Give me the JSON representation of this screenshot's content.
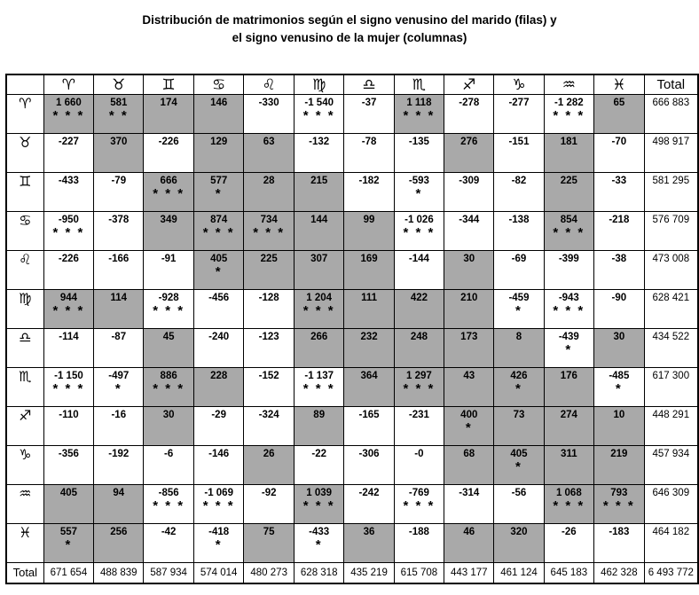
{
  "title": {
    "line1": "Distribución de matrimonios según el signo venusino del marido (filas) y",
    "line2": "el signo venusino de la mujer (columnas)"
  },
  "colors": {
    "shaded_cell": "#a9a9a9",
    "border": "#000000",
    "background": "#ffffff",
    "text": "#000000"
  },
  "chart_data": {
    "type": "table",
    "title": "Distribución de matrimonios según el signo venusino del marido (filas) y el signo venusino de la mujer (columnas)",
    "total_label": "Total",
    "column_headers": [
      "♈",
      "♉",
      "♊",
      "♋",
      "♌",
      "♍",
      "♎",
      "♏",
      "♐",
      "♑",
      "♒",
      "♓"
    ],
    "sign_names": [
      "aries",
      "taurus",
      "gemini",
      "cancer",
      "leo",
      "virgo",
      "libra",
      "scorpio",
      "sagittarius",
      "capricorn",
      "aquarius",
      "pisces"
    ],
    "rows": [
      {
        "sign": "♈",
        "name": "aries",
        "total": "666 883",
        "cells": [
          {
            "v": "1 660",
            "stars": "* * *",
            "shaded": true
          },
          {
            "v": "581",
            "stars": "* *",
            "shaded": true
          },
          {
            "v": "174",
            "stars": "",
            "shaded": true
          },
          {
            "v": "146",
            "stars": "",
            "shaded": true
          },
          {
            "v": "-330",
            "stars": "",
            "shaded": false
          },
          {
            "v": "-1 540",
            "stars": "* * *",
            "shaded": false
          },
          {
            "v": "-37",
            "stars": "",
            "shaded": false
          },
          {
            "v": "1 118",
            "stars": "* * *",
            "shaded": true
          },
          {
            "v": "-278",
            "stars": "",
            "shaded": false
          },
          {
            "v": "-277",
            "stars": "",
            "shaded": false
          },
          {
            "v": "-1 282",
            "stars": "* * *",
            "shaded": false
          },
          {
            "v": "65",
            "stars": "",
            "shaded": true
          }
        ]
      },
      {
        "sign": "♉",
        "name": "taurus",
        "total": "498 917",
        "cells": [
          {
            "v": "-227",
            "stars": "",
            "shaded": false
          },
          {
            "v": "370",
            "stars": "",
            "shaded": true
          },
          {
            "v": "-226",
            "stars": "",
            "shaded": false
          },
          {
            "v": "129",
            "stars": "",
            "shaded": true
          },
          {
            "v": "63",
            "stars": "",
            "shaded": true
          },
          {
            "v": "-132",
            "stars": "",
            "shaded": false
          },
          {
            "v": "-78",
            "stars": "",
            "shaded": false
          },
          {
            "v": "-135",
            "stars": "",
            "shaded": false
          },
          {
            "v": "276",
            "stars": "",
            "shaded": true
          },
          {
            "v": "-151",
            "stars": "",
            "shaded": false
          },
          {
            "v": "181",
            "stars": "",
            "shaded": true
          },
          {
            "v": "-70",
            "stars": "",
            "shaded": false
          }
        ]
      },
      {
        "sign": "♊",
        "name": "gemini",
        "total": "581 295",
        "cells": [
          {
            "v": "-433",
            "stars": "",
            "shaded": false
          },
          {
            "v": "-79",
            "stars": "",
            "shaded": false
          },
          {
            "v": "666",
            "stars": "* * *",
            "shaded": true
          },
          {
            "v": "577",
            "stars": "*",
            "shaded": true
          },
          {
            "v": "28",
            "stars": "",
            "shaded": true
          },
          {
            "v": "215",
            "stars": "",
            "shaded": true
          },
          {
            "v": "-182",
            "stars": "",
            "shaded": false
          },
          {
            "v": "-593",
            "stars": "*",
            "shaded": false
          },
          {
            "v": "-309",
            "stars": "",
            "shaded": false
          },
          {
            "v": "-82",
            "stars": "",
            "shaded": false
          },
          {
            "v": "225",
            "stars": "",
            "shaded": true
          },
          {
            "v": "-33",
            "stars": "",
            "shaded": false
          }
        ]
      },
      {
        "sign": "♋",
        "name": "cancer",
        "total": "576 709",
        "cells": [
          {
            "v": "-950",
            "stars": "* * *",
            "shaded": false
          },
          {
            "v": "-378",
            "stars": "",
            "shaded": false
          },
          {
            "v": "349",
            "stars": "",
            "shaded": true
          },
          {
            "v": "874",
            "stars": "* * *",
            "shaded": true
          },
          {
            "v": "734",
            "stars": "* * *",
            "shaded": true
          },
          {
            "v": "144",
            "stars": "",
            "shaded": true
          },
          {
            "v": "99",
            "stars": "",
            "shaded": true
          },
          {
            "v": "-1 026",
            "stars": "* * *",
            "shaded": false
          },
          {
            "v": "-344",
            "stars": "",
            "shaded": false
          },
          {
            "v": "-138",
            "stars": "",
            "shaded": false
          },
          {
            "v": "854",
            "stars": "* * *",
            "shaded": true
          },
          {
            "v": "-218",
            "stars": "",
            "shaded": false
          }
        ]
      },
      {
        "sign": "♌",
        "name": "leo",
        "total": "473 008",
        "cells": [
          {
            "v": "-226",
            "stars": "",
            "shaded": false
          },
          {
            "v": "-166",
            "stars": "",
            "shaded": false
          },
          {
            "v": "-91",
            "stars": "",
            "shaded": false
          },
          {
            "v": "405",
            "stars": "*",
            "shaded": true
          },
          {
            "v": "225",
            "stars": "",
            "shaded": true
          },
          {
            "v": "307",
            "stars": "",
            "shaded": true
          },
          {
            "v": "169",
            "stars": "",
            "shaded": true
          },
          {
            "v": "-144",
            "stars": "",
            "shaded": false
          },
          {
            "v": "30",
            "stars": "",
            "shaded": true
          },
          {
            "v": "-69",
            "stars": "",
            "shaded": false
          },
          {
            "v": "-399",
            "stars": "",
            "shaded": false
          },
          {
            "v": "-38",
            "stars": "",
            "shaded": false
          }
        ]
      },
      {
        "sign": "♍",
        "name": "virgo",
        "total": "628 421",
        "cells": [
          {
            "v": "944",
            "stars": "* * *",
            "shaded": true
          },
          {
            "v": "114",
            "stars": "",
            "shaded": true
          },
          {
            "v": "-928",
            "stars": "* * *",
            "shaded": false
          },
          {
            "v": "-456",
            "stars": "",
            "shaded": false
          },
          {
            "v": "-128",
            "stars": "",
            "shaded": false
          },
          {
            "v": "1 204",
            "stars": "* * *",
            "shaded": true
          },
          {
            "v": "111",
            "stars": "",
            "shaded": true
          },
          {
            "v": "422",
            "stars": "",
            "shaded": true
          },
          {
            "v": "210",
            "stars": "",
            "shaded": true
          },
          {
            "v": "-459",
            "stars": "*",
            "shaded": false
          },
          {
            "v": "-943",
            "stars": "* * *",
            "shaded": false
          },
          {
            "v": "-90",
            "stars": "",
            "shaded": false
          }
        ]
      },
      {
        "sign": "♎",
        "name": "libra",
        "total": "434 522",
        "cells": [
          {
            "v": "-114",
            "stars": "",
            "shaded": false
          },
          {
            "v": "-87",
            "stars": "",
            "shaded": false
          },
          {
            "v": "45",
            "stars": "",
            "shaded": true
          },
          {
            "v": "-240",
            "stars": "",
            "shaded": false
          },
          {
            "v": "-123",
            "stars": "",
            "shaded": false
          },
          {
            "v": "266",
            "stars": "",
            "shaded": true
          },
          {
            "v": "232",
            "stars": "",
            "shaded": true
          },
          {
            "v": "248",
            "stars": "",
            "shaded": true
          },
          {
            "v": "173",
            "stars": "",
            "shaded": true
          },
          {
            "v": "8",
            "stars": "",
            "shaded": true
          },
          {
            "v": "-439",
            "stars": "*",
            "shaded": false
          },
          {
            "v": "30",
            "stars": "",
            "shaded": true
          }
        ]
      },
      {
        "sign": "♏",
        "name": "scorpio",
        "total": "617 300",
        "cells": [
          {
            "v": "-1 150",
            "stars": "* * *",
            "shaded": false
          },
          {
            "v": "-497",
            "stars": "*",
            "shaded": false
          },
          {
            "v": "886",
            "stars": "* * *",
            "shaded": true
          },
          {
            "v": "228",
            "stars": "",
            "shaded": true
          },
          {
            "v": "-152",
            "stars": "",
            "shaded": false
          },
          {
            "v": "-1 137",
            "stars": "* * *",
            "shaded": false
          },
          {
            "v": "364",
            "stars": "",
            "shaded": true
          },
          {
            "v": "1 297",
            "stars": "* * *",
            "shaded": true
          },
          {
            "v": "43",
            "stars": "",
            "shaded": true
          },
          {
            "v": "426",
            "stars": "*",
            "shaded": true
          },
          {
            "v": "176",
            "stars": "",
            "shaded": true
          },
          {
            "v": "-485",
            "stars": "*",
            "shaded": false
          }
        ]
      },
      {
        "sign": "♐",
        "name": "sagittarius",
        "total": "448 291",
        "cells": [
          {
            "v": "-110",
            "stars": "",
            "shaded": false
          },
          {
            "v": "-16",
            "stars": "",
            "shaded": false
          },
          {
            "v": "30",
            "stars": "",
            "shaded": true
          },
          {
            "v": "-29",
            "stars": "",
            "shaded": false
          },
          {
            "v": "-324",
            "stars": "",
            "shaded": false
          },
          {
            "v": "89",
            "stars": "",
            "shaded": true
          },
          {
            "v": "-165",
            "stars": "",
            "shaded": false
          },
          {
            "v": "-231",
            "stars": "",
            "shaded": false
          },
          {
            "v": "400",
            "stars": "*",
            "shaded": true
          },
          {
            "v": "73",
            "stars": "",
            "shaded": true
          },
          {
            "v": "274",
            "stars": "",
            "shaded": true
          },
          {
            "v": "10",
            "stars": "",
            "shaded": true
          }
        ]
      },
      {
        "sign": "♑",
        "name": "capricorn",
        "total": "457 934",
        "cells": [
          {
            "v": "-356",
            "stars": "",
            "shaded": false
          },
          {
            "v": "-192",
            "stars": "",
            "shaded": false
          },
          {
            "v": "-6",
            "stars": "",
            "shaded": false
          },
          {
            "v": "-146",
            "stars": "",
            "shaded": false
          },
          {
            "v": "26",
            "stars": "",
            "shaded": true
          },
          {
            "v": "-22",
            "stars": "",
            "shaded": false
          },
          {
            "v": "-306",
            "stars": "",
            "shaded": false
          },
          {
            "v": "-0",
            "stars": "",
            "shaded": false
          },
          {
            "v": "68",
            "stars": "",
            "shaded": true
          },
          {
            "v": "405",
            "stars": "*",
            "shaded": true
          },
          {
            "v": "311",
            "stars": "",
            "shaded": true
          },
          {
            "v": "219",
            "stars": "",
            "shaded": true
          }
        ]
      },
      {
        "sign": "♒",
        "name": "aquarius",
        "total": "646 309",
        "cells": [
          {
            "v": "405",
            "stars": "",
            "shaded": true
          },
          {
            "v": "94",
            "stars": "",
            "shaded": true
          },
          {
            "v": "-856",
            "stars": "* * *",
            "shaded": false
          },
          {
            "v": "-1 069",
            "stars": "* * *",
            "shaded": false
          },
          {
            "v": "-92",
            "stars": "",
            "shaded": false
          },
          {
            "v": "1 039",
            "stars": "* * *",
            "shaded": true
          },
          {
            "v": "-242",
            "stars": "",
            "shaded": false
          },
          {
            "v": "-769",
            "stars": "* * *",
            "shaded": false
          },
          {
            "v": "-314",
            "stars": "",
            "shaded": false
          },
          {
            "v": "-56",
            "stars": "",
            "shaded": false
          },
          {
            "v": "1 068",
            "stars": "* * *",
            "shaded": true
          },
          {
            "v": "793",
            "stars": "* * *",
            "shaded": true
          }
        ]
      },
      {
        "sign": "♓",
        "name": "pisces",
        "total": "464 182",
        "cells": [
          {
            "v": "557",
            "stars": "*",
            "shaded": true
          },
          {
            "v": "256",
            "stars": "",
            "shaded": true
          },
          {
            "v": "-42",
            "stars": "",
            "shaded": false
          },
          {
            "v": "-418",
            "stars": "*",
            "shaded": false
          },
          {
            "v": "75",
            "stars": "",
            "shaded": true
          },
          {
            "v": "-433",
            "stars": "*",
            "shaded": false
          },
          {
            "v": "36",
            "stars": "",
            "shaded": true
          },
          {
            "v": "-188",
            "stars": "",
            "shaded": false
          },
          {
            "v": "46",
            "stars": "",
            "shaded": true
          },
          {
            "v": "320",
            "stars": "",
            "shaded": true
          },
          {
            "v": "-26",
            "stars": "",
            "shaded": false
          },
          {
            "v": "-183",
            "stars": "",
            "shaded": false
          }
        ]
      }
    ],
    "column_totals": [
      "671 654",
      "488 839",
      "587 934",
      "574 014",
      "480 273",
      "628 318",
      "435 219",
      "615 708",
      "443 177",
      "461 124",
      "645 183",
      "462 328"
    ],
    "grand_total": "6 493 772"
  }
}
